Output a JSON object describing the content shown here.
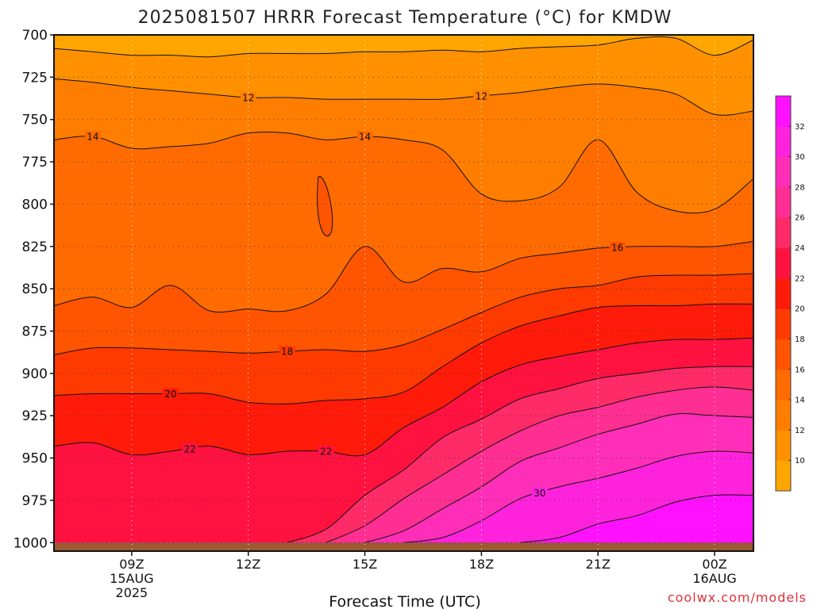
{
  "chart_data": {
    "type": "heatmap",
    "title": "2025081507 HRRR Forecast Temperature (°C) for KMDW",
    "xlabel": "Forecast Time (UTC)",
    "ylabel": "",
    "credit": "coolwx.com/models",
    "y_axis": {
      "reversed": true,
      "ticks": [
        "700",
        "725",
        "750",
        "775",
        "800",
        "825",
        "850",
        "875",
        "900",
        "925",
        "950",
        "975",
        "1000"
      ],
      "ylim": [
        700,
        1005
      ]
    },
    "x_axis": {
      "ticks": [
        {
          "label": "09Z",
          "sub1": "15AUG",
          "sub2": "2025",
          "hour": 2
        },
        {
          "label": "12Z",
          "sub1": "",
          "sub2": "",
          "hour": 5
        },
        {
          "label": "15Z",
          "sub1": "",
          "sub2": "",
          "hour": 8
        },
        {
          "label": "18Z",
          "sub1": "",
          "sub2": "",
          "hour": 11
        },
        {
          "label": "21Z",
          "sub1": "",
          "sub2": "",
          "hour": 14
        },
        {
          "label": "00Z",
          "sub1": "16AUG",
          "sub2": "",
          "hour": 17
        }
      ],
      "xlim": [
        0,
        18
      ]
    },
    "grid": true,
    "colorbar": {
      "placement": "right",
      "tick_labels": [
        "10",
        "12",
        "14",
        "16",
        "18",
        "20",
        "22",
        "24",
        "26",
        "28",
        "30",
        "32"
      ],
      "levels": [
        8,
        10,
        12,
        14,
        16,
        18,
        20,
        22,
        24,
        26,
        28,
        30,
        32,
        34
      ],
      "colors": [
        "#ffa500",
        "#ff9100",
        "#ff7e00",
        "#ff6b00",
        "#ff5400",
        "#ff3a00",
        "#ff1a0a",
        "#ff1240",
        "#ff2a68",
        "#ff2e92",
        "#ff2eb8",
        "#ff22dc",
        "#ff10ff"
      ]
    },
    "hours": [
      0,
      1,
      2,
      3,
      4,
      5,
      6,
      7,
      8,
      9,
      10,
      11,
      12,
      13,
      14,
      15,
      16,
      17,
      18
    ],
    "isotherms": [
      {
        "value": 10,
        "label": "",
        "p": [
          708,
          710,
          712,
          712,
          713,
          711,
          711,
          711,
          710,
          710,
          709,
          710,
          708,
          707,
          706,
          702,
          702,
          712,
          703
        ]
      },
      {
        "value": 12,
        "label": "12",
        "p": [
          726,
          728,
          731,
          733,
          735,
          737,
          737,
          738,
          738,
          738,
          738,
          736,
          734,
          731,
          729,
          731,
          735,
          747,
          745
        ]
      },
      {
        "value": 14,
        "label": "14",
        "p": [
          762,
          760,
          767,
          766,
          764,
          758,
          758,
          762,
          760,
          762,
          768,
          794,
          798,
          790,
          762,
          793,
          804,
          803,
          785
        ]
      },
      {
        "value": 16,
        "label": "16",
        "p": [
          860,
          855,
          861,
          848,
          863,
          862,
          863,
          853,
          825,
          846,
          838,
          840,
          832,
          829,
          826,
          825,
          825,
          825,
          822
        ]
      },
      {
        "value": 18,
        "label": "18",
        "p": [
          889,
          885,
          885,
          886,
          887,
          888,
          887,
          886,
          887,
          883,
          874,
          864,
          855,
          850,
          848,
          843,
          842,
          842,
          841
        ]
      },
      {
        "value": 20,
        "label": "20",
        "p": [
          913,
          912,
          912,
          912,
          912,
          917,
          918,
          916,
          915,
          911,
          896,
          882,
          872,
          866,
          861,
          860,
          860,
          859,
          859
        ]
      },
      {
        "value": 22,
        "label": "22",
        "p": [
          943,
          941,
          948,
          946,
          943,
          948,
          946,
          946,
          948,
          932,
          920,
          905,
          895,
          890,
          886,
          882,
          880,
          880,
          879
        ]
      },
      {
        "value": 24,
        "label": "",
        "p": [
          1000,
          1000,
          1000,
          1000,
          1000,
          1000,
          1000,
          992,
          972,
          957,
          938,
          927,
          915,
          909,
          903,
          900,
          897,
          896,
          896
        ]
      },
      {
        "value": 26,
        "label": "",
        "p": [
          1000,
          1000,
          1000,
          1000,
          1000,
          1000,
          1000,
          1000,
          990,
          974,
          960,
          946,
          934,
          925,
          920,
          914,
          910,
          908,
          910
        ]
      },
      {
        "value": 28,
        "label": "",
        "p": [
          1000,
          1000,
          1000,
          1000,
          1000,
          1000,
          1000,
          1000,
          1000,
          993,
          980,
          967,
          952,
          944,
          936,
          930,
          924,
          925,
          926
        ]
      },
      {
        "value": 30,
        "label": "30",
        "p": [
          1000,
          1000,
          1000,
          1000,
          1000,
          1000,
          1000,
          1000,
          1000,
          1000,
          997,
          987,
          974,
          967,
          962,
          956,
          949,
          946,
          947
        ]
      },
      {
        "value": 32,
        "label": "",
        "p": [
          1000,
          1000,
          1000,
          1000,
          1000,
          1000,
          1000,
          1000,
          1000,
          1000,
          1000,
          1000,
          1000,
          997,
          989,
          984,
          976,
          972,
          972
        ]
      }
    ]
  }
}
